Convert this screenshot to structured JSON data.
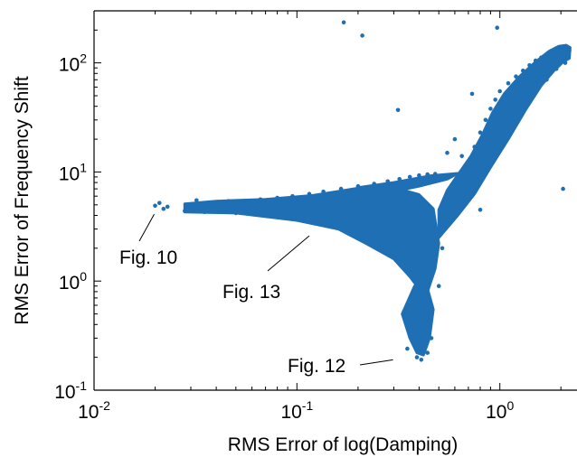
{
  "chart_data": {
    "type": "scatter",
    "xlabel": "RMS Error of log(Damping)",
    "ylabel": "RMS Error of Frequency Shift",
    "x_scale": "log",
    "y_scale": "log",
    "xlim": [
      0.01,
      2.4
    ],
    "ylim": [
      0.1,
      300
    ],
    "grid": false,
    "legend": "none",
    "marker_color": "#1f6fb5",
    "x_ticks": [
      {
        "base": "10",
        "exp": "-2",
        "value": 0.01
      },
      {
        "base": "10",
        "exp": "-1",
        "value": 0.1
      },
      {
        "base": "10",
        "exp": "0",
        "value": 1
      }
    ],
    "y_ticks": [
      {
        "base": "10",
        "exp": "-1",
        "value": 0.1
      },
      {
        "base": "10",
        "exp": "0",
        "value": 1
      },
      {
        "base": "10",
        "exp": "1",
        "value": 10
      },
      {
        "base": "10",
        "exp": "2",
        "value": 100
      }
    ],
    "points": [
      [
        0.02,
        4.9
      ],
      [
        0.021,
        5.2
      ],
      [
        0.022,
        4.6
      ],
      [
        0.023,
        4.8
      ],
      [
        0.17,
        235
      ],
      [
        0.21,
        178
      ],
      [
        0.97,
        210
      ],
      [
        0.315,
        37
      ],
      [
        0.73,
        52
      ],
      [
        2.05,
        7.0
      ],
      [
        0.028,
        4.4
      ],
      [
        0.03,
        4.8
      ],
      [
        0.032,
        5.5
      ],
      [
        0.035,
        4.3
      ],
      [
        0.038,
        5.0
      ],
      [
        0.042,
        4.6
      ],
      [
        0.046,
        5.4
      ],
      [
        0.05,
        4.2
      ],
      [
        0.055,
        5.1
      ],
      [
        0.06,
        4.9
      ],
      [
        0.066,
        5.6
      ],
      [
        0.072,
        4.4
      ],
      [
        0.08,
        5.8
      ],
      [
        0.088,
        4.0
      ],
      [
        0.095,
        6.0
      ],
      [
        0.105,
        3.8
      ],
      [
        0.115,
        6.3
      ],
      [
        0.125,
        3.6
      ],
      [
        0.135,
        6.6
      ],
      [
        0.15,
        3.4
      ],
      [
        0.165,
        7.0
      ],
      [
        0.18,
        3.0
      ],
      [
        0.2,
        7.4
      ],
      [
        0.22,
        2.6
      ],
      [
        0.24,
        7.8
      ],
      [
        0.26,
        2.2
      ],
      [
        0.28,
        8.2
      ],
      [
        0.3,
        1.8
      ],
      [
        0.32,
        8.6
      ],
      [
        0.34,
        1.4
      ],
      [
        0.36,
        9.0
      ],
      [
        0.38,
        1.1
      ],
      [
        0.4,
        9.3
      ],
      [
        0.42,
        0.8
      ],
      [
        0.44,
        9.5
      ],
      [
        0.46,
        0.6
      ],
      [
        0.48,
        9.6
      ],
      [
        0.36,
        0.5
      ],
      [
        0.38,
        0.4
      ],
      [
        0.4,
        0.32
      ],
      [
        0.42,
        0.26
      ],
      [
        0.44,
        0.22
      ],
      [
        0.39,
        0.2
      ],
      [
        0.41,
        0.19
      ],
      [
        0.35,
        0.24
      ],
      [
        0.46,
        0.3
      ],
      [
        0.5,
        0.9
      ],
      [
        0.52,
        2.0
      ],
      [
        0.56,
        3.5
      ],
      [
        0.6,
        5.0
      ],
      [
        0.65,
        8.0
      ],
      [
        0.7,
        12
      ],
      [
        0.75,
        17
      ],
      [
        0.8,
        23
      ],
      [
        0.85,
        30
      ],
      [
        0.9,
        38
      ],
      [
        0.95,
        46
      ],
      [
        1.0,
        55
      ],
      [
        1.1,
        65
      ],
      [
        1.2,
        75
      ],
      [
        1.3,
        85
      ],
      [
        1.4,
        95
      ],
      [
        1.5,
        105
      ],
      [
        1.6,
        112
      ],
      [
        1.7,
        118
      ],
      [
        1.8,
        124
      ],
      [
        1.9,
        128
      ],
      [
        2.0,
        132
      ],
      [
        2.1,
        135
      ],
      [
        2.2,
        130
      ],
      [
        0.55,
        15
      ],
      [
        0.6,
        20
      ],
      [
        0.65,
        14
      ],
      [
        0.7,
        9.0
      ],
      [
        0.75,
        6.5
      ],
      [
        0.8,
        4.5
      ],
      [
        1.1,
        25
      ],
      [
        1.3,
        40
      ],
      [
        1.5,
        55
      ],
      [
        1.7,
        70
      ],
      [
        1.9,
        88
      ],
      [
        2.1,
        100
      ]
    ],
    "annotations": [
      {
        "text": "Fig. 10",
        "x": 0.02,
        "y": 4.6
      },
      {
        "text": "Fig. 13",
        "x": 0.115,
        "y": 2.6
      },
      {
        "text": "Fig. 12",
        "x": 0.31,
        "y": 0.19
      }
    ]
  }
}
